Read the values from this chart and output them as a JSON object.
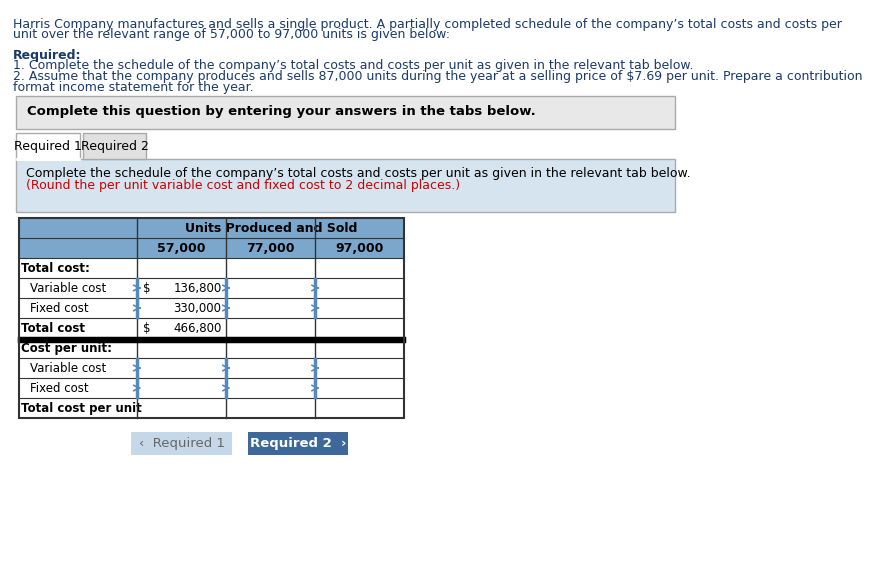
{
  "header_line1": "Harris Company manufactures and sells a single product. A partially completed schedule of the company’s total costs and costs per",
  "header_line2": "unit over the relevant range of 57,000 to 97,000 units is given below:",
  "required_label": "Required:",
  "req1_text": "1. Complete the schedule of the company’s total costs and costs per unit as given in the relevant tab below.",
  "req2_line1": "2. Assume that the company produces and sells 87,000 units during the year at a selling price of $7.69 per unit. Prepare a contribution",
  "req2_line2": "format income statement for the year.",
  "instruction_text": "Complete this question by entering your answers in the tabs below.",
  "tab1_label": "Required 1",
  "tab2_label": "Required 2",
  "content_black": "Complete the schedule of the company’s total costs and costs per unit as given in the relevant tab below.",
  "content_red": "(Round the per unit variable cost and fixed cost to 2 decimal places.)",
  "table_header1": "Units Produced and Sold",
  "col_headers": [
    "57,000",
    "77,000",
    "97,000"
  ],
  "row_labels": [
    "Total cost:",
    "   Variable cost",
    "   Fixed cost",
    "Total cost",
    "Cost per unit:",
    "   Variable cost",
    "   Fixed cost",
    "Total cost per unit"
  ],
  "row_bold": [
    true,
    false,
    false,
    true,
    true,
    false,
    false,
    true
  ],
  "row_has_dollar": [
    false,
    true,
    false,
    true,
    false,
    false,
    false,
    false
  ],
  "row_val_57": [
    "",
    "136,800",
    "330,000",
    "466,800",
    "",
    "",
    "",
    ""
  ],
  "row_has_blue_border_77_97": [
    false,
    true,
    true,
    false,
    false,
    true,
    true,
    false
  ],
  "row_has_blue_border_57": [
    false,
    true,
    true,
    false,
    false,
    true,
    true,
    false
  ],
  "double_underline_row": 3,
  "blue_hdr_color": "#7ba7cc",
  "light_blue_bg": "#d6e4f0",
  "inst_box_bg": "#e8e8e8",
  "tab_active_bg": "#ffffff",
  "tab_inactive_bg": "#e0e0e0",
  "btn1_bg": "#c5d8ea",
  "btn2_bg": "#3d6899",
  "btn1_color": "#666666",
  "btn2_color": "#ffffff",
  "border_gray": "#aaaaaa",
  "border_dark": "#333333",
  "blue_indicator": "#5588bb",
  "text_blue": "#1a3a6a",
  "text_red": "#cc0000"
}
